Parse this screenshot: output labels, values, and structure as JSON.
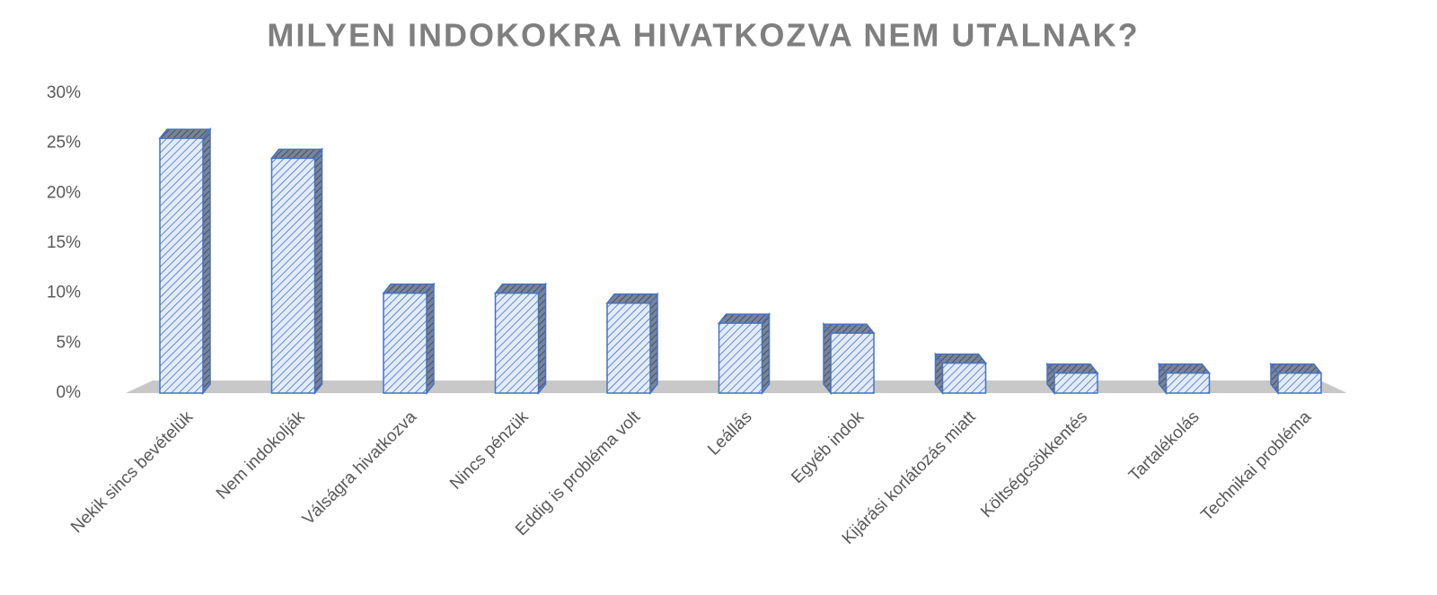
{
  "chart_data": {
    "type": "bar3d",
    "title": "MILYEN INDOKOKRA HIVATKOZVA NEM UTALNAK?",
    "categories": [
      "Nekik sincs bevételük",
      "Nem indokolják",
      "Válságra hivatkozva",
      "Nincs pénzük",
      "Eddig is probléma volt",
      "Leállás",
      "Egyéb indok",
      "Kijárási korlátozás miatt",
      "Költségcsökkentés",
      "Tartalékolás",
      "Technikai probléma"
    ],
    "values": [
      25.5,
      23.5,
      10,
      10,
      9,
      7,
      6,
      3,
      2,
      2,
      2
    ],
    "color": "#4472c4",
    "ylim": [
      0,
      30
    ],
    "yticks": [
      {
        "value": 0,
        "label": "0%"
      },
      {
        "value": 5,
        "label": "5%"
      },
      {
        "value": 10,
        "label": "10%"
      },
      {
        "value": 15,
        "label": "15%"
      },
      {
        "value": 20,
        "label": "20%"
      },
      {
        "value": 25,
        "label": "25%"
      },
      {
        "value": 30,
        "label": "30%"
      }
    ]
  }
}
